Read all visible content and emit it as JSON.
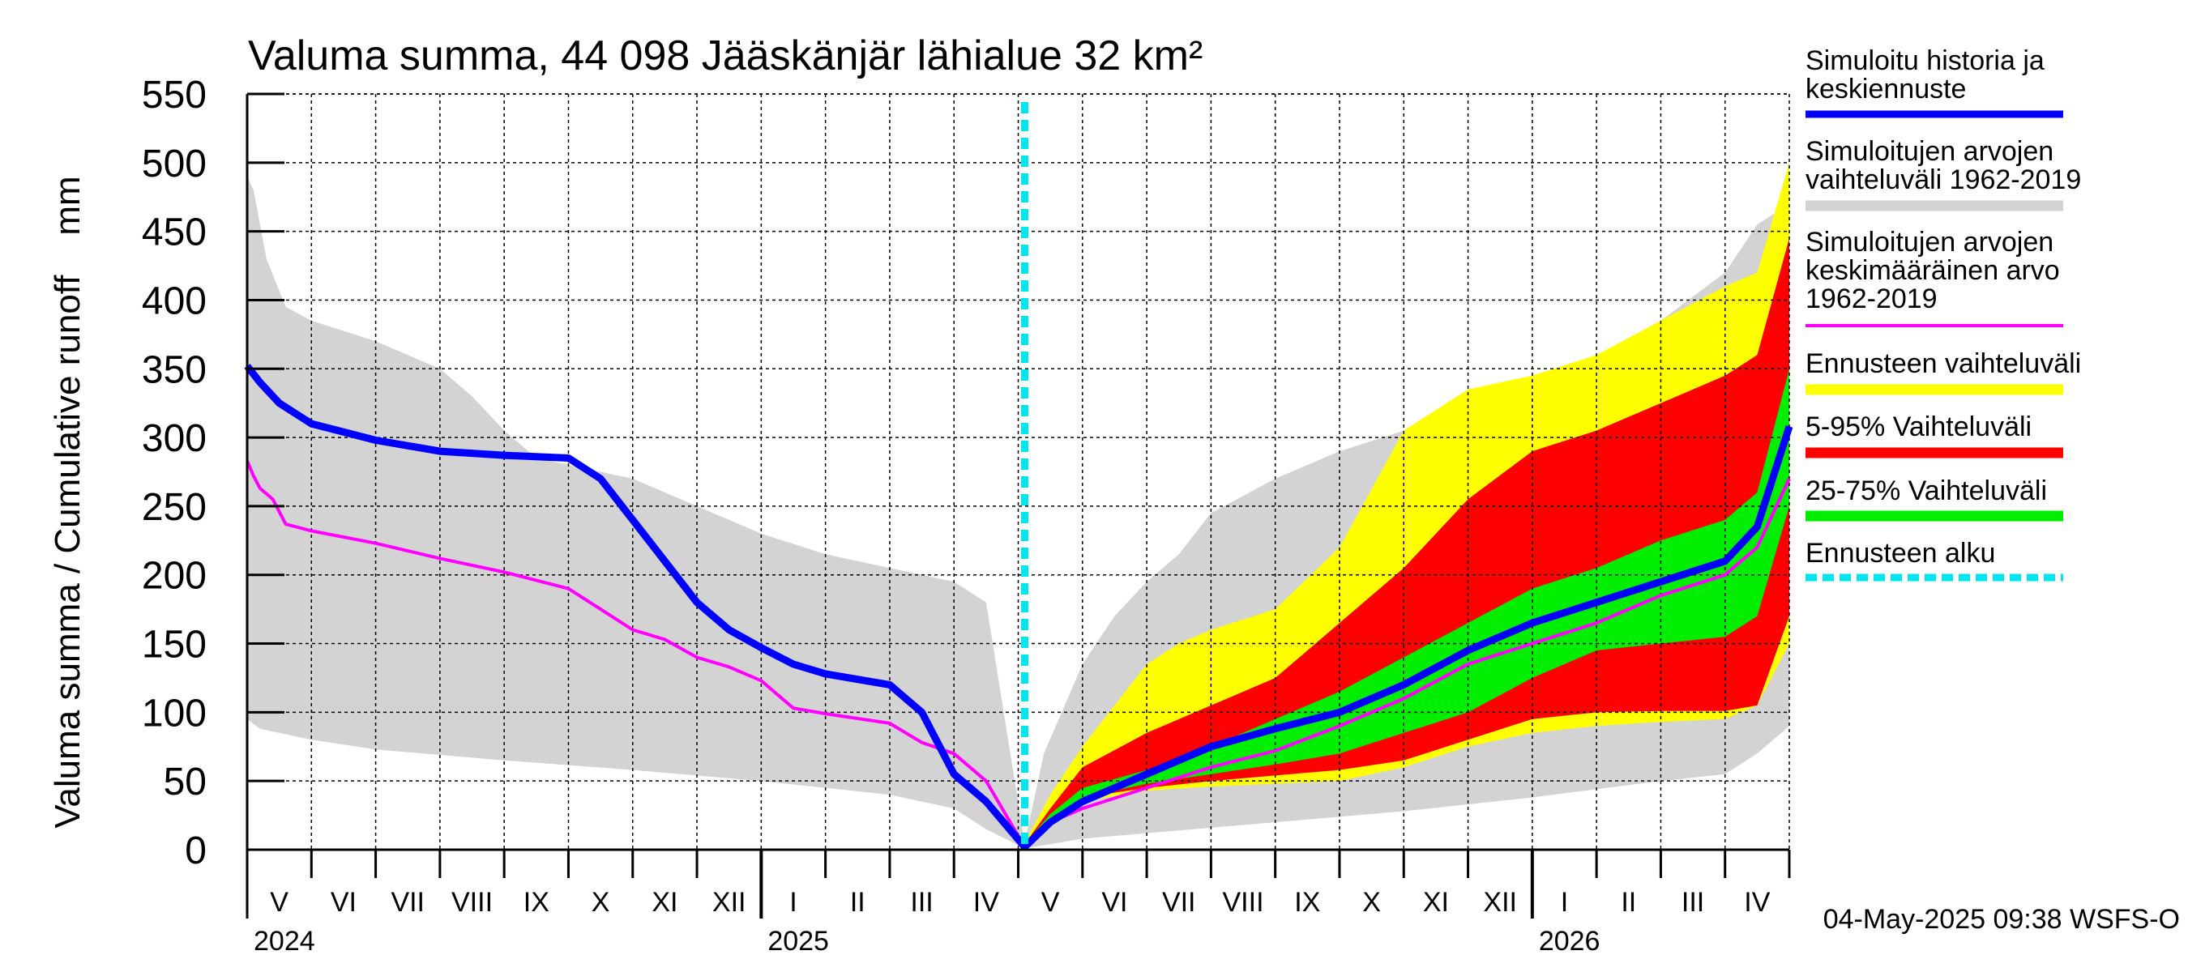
{
  "chart_data": {
    "type": "area",
    "title": "Valuma summa, 44 098 Jääskänjär lähialue 32 km²",
    "ylabel": "Valuma summa / Cumulative runoff    mm",
    "ylim": [
      0,
      550
    ],
    "yticks": [
      0,
      50,
      100,
      150,
      200,
      250,
      300,
      350,
      400,
      450,
      500,
      550
    ],
    "xlim": [
      0,
      24
    ],
    "forecast_start": 12.1,
    "month_labels": [
      {
        "x": 0.5,
        "label": "V"
      },
      {
        "x": 1.5,
        "label": "VI"
      },
      {
        "x": 2.5,
        "label": "VII"
      },
      {
        "x": 3.5,
        "label": "VIII"
      },
      {
        "x": 4.5,
        "label": "IX"
      },
      {
        "x": 5.5,
        "label": "X"
      },
      {
        "x": 6.5,
        "label": "XI"
      },
      {
        "x": 7.5,
        "label": "XII"
      },
      {
        "x": 8.5,
        "label": "I"
      },
      {
        "x": 9.5,
        "label": "II"
      },
      {
        "x": 10.5,
        "label": "III"
      },
      {
        "x": 11.5,
        "label": "IV"
      },
      {
        "x": 12.5,
        "label": "V"
      },
      {
        "x": 13.5,
        "label": "VI"
      },
      {
        "x": 14.5,
        "label": "VII"
      },
      {
        "x": 15.5,
        "label": "VIII"
      },
      {
        "x": 16.5,
        "label": "IX"
      },
      {
        "x": 17.5,
        "label": "X"
      },
      {
        "x": 18.5,
        "label": "XI"
      },
      {
        "x": 19.5,
        "label": "XII"
      },
      {
        "x": 20.5,
        "label": "I"
      },
      {
        "x": 21.5,
        "label": "II"
      },
      {
        "x": 22.5,
        "label": "III"
      },
      {
        "x": 23.5,
        "label": "IV"
      }
    ],
    "year_labels": [
      {
        "x": 0,
        "label": "2024"
      },
      {
        "x": 8,
        "label": "2025"
      },
      {
        "x": 20,
        "label": "2026"
      }
    ],
    "year_boundaries": [
      8,
      20
    ],
    "legend": [
      {
        "label": "Simuloitu historia ja keskiennuste",
        "color": "#0000ff"
      },
      {
        "label": "Simuloitujen arvojen vaihteluväli 1962-2019",
        "color": "#d3d3d3"
      },
      {
        "label": "Simuloitujen arvojen keskimääräinen arvo 1962-2019",
        "color": "#ff00ff"
      },
      {
        "label": "Ennusteen vaihteluväli",
        "color": "#ffff00"
      },
      {
        "label": "5-95% Vaihteluväli",
        "color": "#ff0000"
      },
      {
        "label": "25-75% Vaihteluväli",
        "color": "#00ee00"
      },
      {
        "label": "Ennusteen alku",
        "color": "#00e5ee"
      }
    ],
    "series": [
      {
        "name": "Simuloitujen arvojen vaihteluväli 1962-2019 (upper)",
        "x": [
          0,
          0.1,
          0.3,
          0.6,
          1,
          2,
          3,
          3.5,
          4,
          4.5,
          5,
          5.5,
          6,
          7,
          8,
          9,
          10,
          11,
          11.5,
          12.1,
          12.4,
          13,
          13.5,
          14,
          14.5,
          15,
          16,
          17,
          18,
          19,
          20,
          21,
          21.5,
          22,
          23,
          23.5,
          24
        ],
        "values": [
          490,
          480,
          430,
          395,
          385,
          370,
          350,
          330,
          305,
          285,
          280,
          275,
          270,
          250,
          230,
          215,
          205,
          195,
          180,
          5,
          70,
          135,
          170,
          195,
          215,
          245,
          270,
          290,
          305,
          320,
          335,
          355,
          370,
          385,
          420,
          455,
          470
        ]
      },
      {
        "name": "Simuloitujen arvojen vaihteluväli 1962-2019 (lower)",
        "x": [
          0,
          0.2,
          1,
          2,
          4,
          6,
          8,
          10,
          11,
          11.5,
          12.1,
          12.5,
          13,
          14,
          16,
          18,
          20,
          22,
          23,
          23.5,
          24
        ],
        "values": [
          95,
          88,
          80,
          73,
          65,
          58,
          50,
          40,
          30,
          15,
          1,
          4,
          8,
          12,
          20,
          28,
          38,
          50,
          55,
          70,
          90
        ]
      },
      {
        "name": "Ennusteen vaihteluväli (upper)",
        "x": [
          12.1,
          12.5,
          13,
          13.5,
          14,
          14.5,
          15,
          16,
          17,
          18,
          19,
          20,
          21,
          22,
          23,
          23.5,
          24
        ],
        "values": [
          5,
          40,
          75,
          105,
          135,
          150,
          160,
          175,
          220,
          305,
          335,
          345,
          360,
          385,
          410,
          420,
          500
        ]
      },
      {
        "name": "Ennusteen vaihteluväli (lower)",
        "x": [
          12.1,
          12.5,
          13,
          14,
          15,
          16,
          17,
          18,
          19,
          20,
          21,
          22,
          23,
          23.5,
          24
        ],
        "values": [
          2,
          20,
          35,
          43,
          46,
          48,
          50,
          60,
          75,
          85,
          90,
          93,
          95,
          105,
          150
        ]
      },
      {
        "name": "5-95% Vaihteluväli (upper)",
        "x": [
          12.1,
          12.5,
          13,
          14,
          15,
          16,
          17,
          18,
          19,
          20,
          21,
          22,
          23,
          23.5,
          24
        ],
        "values": [
          4,
          30,
          60,
          85,
          105,
          125,
          165,
          205,
          255,
          290,
          305,
          325,
          345,
          360,
          445
        ]
      },
      {
        "name": "5-95% Vaihteluväli (lower)",
        "x": [
          12.1,
          12.5,
          13,
          14,
          15,
          16,
          17,
          18,
          19,
          20,
          21,
          22,
          23,
          23.5,
          24
        ],
        "values": [
          3,
          25,
          38,
          45,
          50,
          54,
          58,
          65,
          80,
          95,
          100,
          101,
          101,
          105,
          170
        ]
      },
      {
        "name": "25-75% Vaihteluväli (upper)",
        "x": [
          12.1,
          12.5,
          13,
          14,
          15,
          16,
          17,
          18,
          19,
          20,
          21,
          22,
          23,
          23.5,
          24
        ],
        "values": [
          4,
          26,
          45,
          58,
          75,
          95,
          115,
          140,
          165,
          190,
          205,
          225,
          240,
          260,
          350
        ]
      },
      {
        "name": "25-75% Vaihteluväli (lower)",
        "x": [
          12.1,
          12.5,
          13,
          14,
          15,
          16,
          17,
          18,
          19,
          20,
          21,
          22,
          23,
          23.5,
          24
        ],
        "values": [
          3,
          22,
          38,
          48,
          55,
          62,
          70,
          85,
          100,
          125,
          145,
          150,
          155,
          170,
          250
        ]
      },
      {
        "name": "Simuloitujen arvojen keskimääräinen arvo 1962-2019",
        "x": [
          0,
          0.1,
          0.2,
          0.4,
          0.6,
          1,
          2,
          3,
          4,
          5,
          5.5,
          6,
          6.5,
          7,
          7.5,
          8,
          8.5,
          9,
          10,
          10.5,
          11,
          11.5,
          12.1,
          12.5,
          13,
          14,
          15,
          16,
          17,
          18,
          19,
          20,
          21,
          22,
          23,
          23.5,
          24
        ],
        "values": [
          283,
          272,
          263,
          255,
          237,
          232,
          223,
          212,
          202,
          190,
          175,
          160,
          153,
          140,
          133,
          123,
          103,
          99,
          92,
          78,
          70,
          50,
          2,
          20,
          30,
          45,
          60,
          72,
          90,
          110,
          135,
          150,
          165,
          185,
          200,
          220,
          270
        ]
      },
      {
        "name": "Simuloitu historia ja keskiennuste",
        "x": [
          0,
          0.2,
          0.5,
          1,
          2,
          3,
          4,
          5,
          5.5,
          6,
          6.5,
          7,
          7.5,
          8,
          8.5,
          9,
          10,
          10.5,
          11,
          11.5,
          12.1,
          12.5,
          13,
          14,
          15,
          16,
          17,
          18,
          19,
          20,
          21,
          22,
          23,
          23.5,
          24
        ],
        "values": [
          352,
          340,
          325,
          310,
          298,
          290,
          287,
          285,
          270,
          240,
          210,
          180,
          160,
          147,
          135,
          128,
          120,
          100,
          55,
          35,
          2,
          20,
          35,
          55,
          75,
          88,
          100,
          120,
          145,
          165,
          180,
          195,
          210,
          235,
          308
        ]
      }
    ]
  },
  "footer": {
    "timestamp": "04-May-2025 09:38 WSFS-O"
  }
}
